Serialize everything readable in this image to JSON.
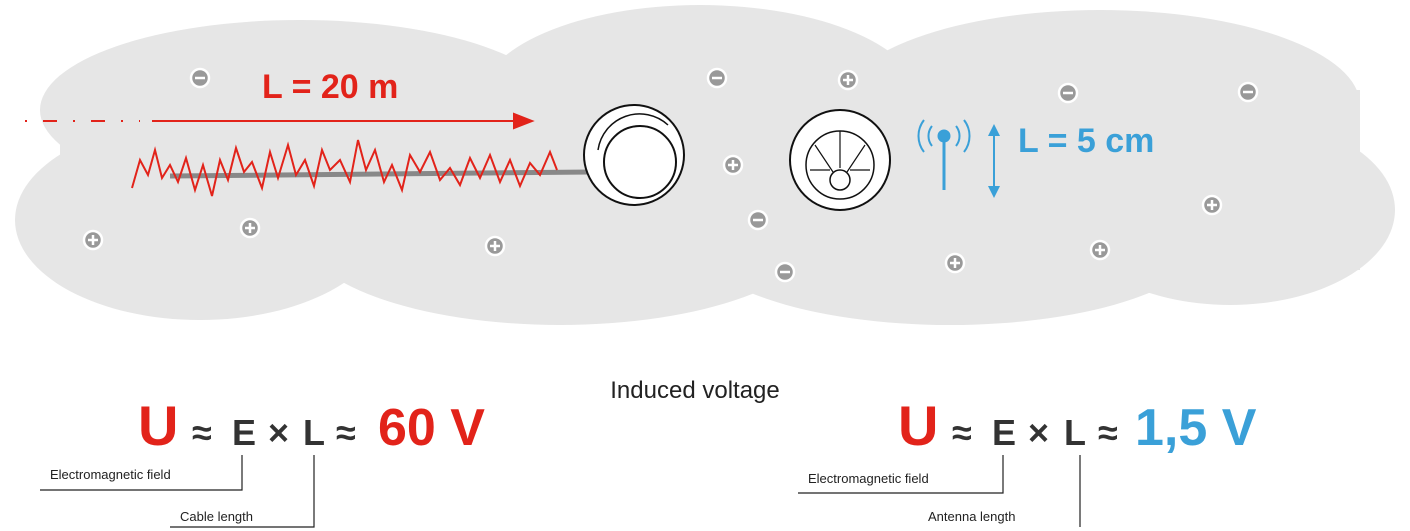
{
  "cloud": {
    "wired_length": "L = 20 m",
    "wireless_length": "L = 5 cm"
  },
  "center_label": "Induced voltage",
  "formulas": [
    {
      "symbol": "U",
      "approx1": "≈",
      "field": "E",
      "times": "×",
      "length": "L",
      "approx2": "≈",
      "result": "60 V",
      "field_label": "Electromagnetic field",
      "length_label": "Cable length"
    },
    {
      "symbol": "U",
      "approx1": "≈",
      "field": "E",
      "times": "×",
      "length": "L",
      "approx2": "≈",
      "result": "1,5 V",
      "field_label": "Electromagnetic field",
      "length_label": "Antenna length"
    }
  ]
}
